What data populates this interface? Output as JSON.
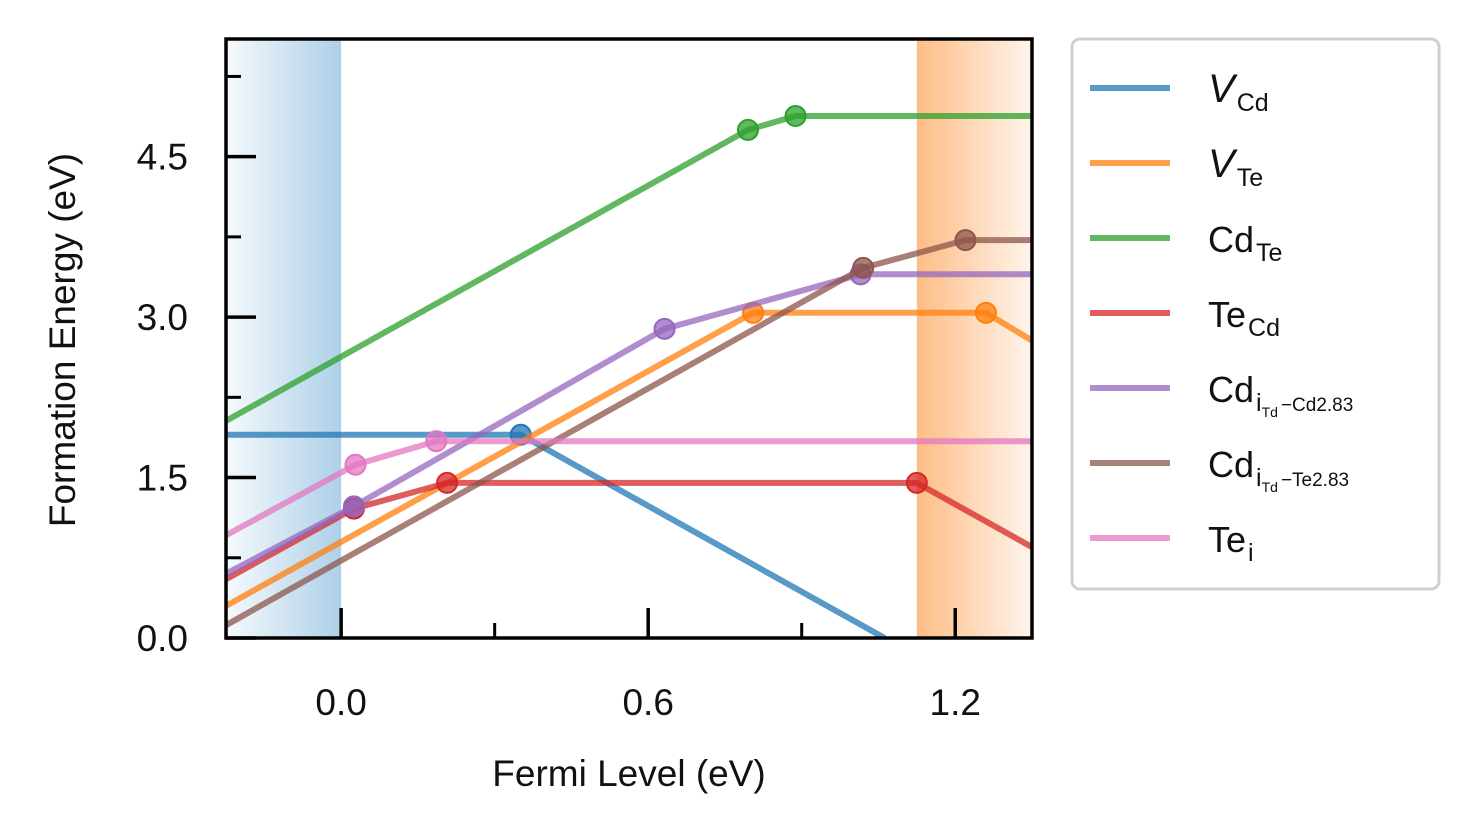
{
  "chart_data": {
    "type": "line",
    "xlabel": "Fermi Level (eV)",
    "ylabel": "Formation Energy (eV)",
    "xlim": [
      -0.225,
      1.35
    ],
    "ylim": [
      0.0,
      5.6
    ],
    "xticks": [
      "0.0",
      "0.6",
      "1.2"
    ],
    "yticks": [
      "0.0",
      "1.5",
      "3.0",
      "4.5"
    ],
    "shaded_regions": [
      {
        "from": -0.225,
        "to": 0.0,
        "color": "#aed0e8"
      },
      {
        "from": 1.125,
        "to": 1.35,
        "color": "#fdbd85"
      }
    ],
    "legend_position": "right, outside plot",
    "series": [
      {
        "name": "V",
        "sub": "Cd",
        "italic": true,
        "color": "#1f77b4",
        "x": [
          -0.225,
          0.351,
          1.062
        ],
        "y": [
          1.9,
          1.9,
          0.0
        ],
        "markers": [
          [
            0.351,
            1.9
          ]
        ]
      },
      {
        "name": "V",
        "sub": "Te",
        "italic": true,
        "color": "#ff7f0e",
        "x": [
          -0.225,
          0.805,
          1.26,
          1.35
        ],
        "y": [
          0.3,
          3.04,
          3.04,
          2.78
        ],
        "markers": [
          [
            0.805,
            3.04
          ],
          [
            1.26,
            3.04
          ]
        ]
      },
      {
        "name": "Cd",
        "sub": "Te",
        "color": "#2ca02c",
        "x": [
          -0.225,
          0.795,
          0.888,
          1.35
        ],
        "y": [
          2.03,
          4.75,
          4.88,
          4.88
        ],
        "markers": [
          [
            0.795,
            4.75
          ],
          [
            0.888,
            4.88
          ]
        ]
      },
      {
        "name": "Te",
        "sub": "Cd",
        "color": "#d62728",
        "x": [
          -0.225,
          0.025,
          0.207,
          1.125,
          1.35
        ],
        "y": [
          0.55,
          1.21,
          1.45,
          1.45,
          0.85
        ],
        "markers": [
          [
            0.025,
            1.21
          ],
          [
            0.207,
            1.45
          ],
          [
            1.125,
            1.45
          ]
        ]
      },
      {
        "name": "Cd",
        "sub": "i",
        "subsub": "Td",
        "subsuffix": "−Cd2.83",
        "color": "#9467bd",
        "x": [
          -0.225,
          0.025,
          0.632,
          1.015,
          1.35
        ],
        "y": [
          0.6,
          1.23,
          2.89,
          3.4,
          3.4
        ],
        "markers": [
          [
            0.025,
            1.23
          ],
          [
            0.632,
            2.89
          ],
          [
            1.015,
            3.4
          ]
        ]
      },
      {
        "name": "Cd",
        "sub": "i",
        "subsub": "Td",
        "subsuffix": "−Te2.83",
        "color": "#8c564b",
        "x": [
          -0.225,
          1.02,
          1.22,
          1.35
        ],
        "y": [
          0.12,
          3.46,
          3.72,
          3.72
        ],
        "markers": [
          [
            1.02,
            3.46
          ],
          [
            1.22,
            3.72
          ]
        ]
      },
      {
        "name": "Te",
        "sub": "i",
        "color": "#e377c2",
        "x": [
          -0.225,
          0.028,
          0.186,
          1.35
        ],
        "y": [
          0.96,
          1.62,
          1.84,
          1.84
        ],
        "markers": [
          [
            0.028,
            1.62
          ],
          [
            0.186,
            1.84
          ]
        ]
      }
    ]
  }
}
